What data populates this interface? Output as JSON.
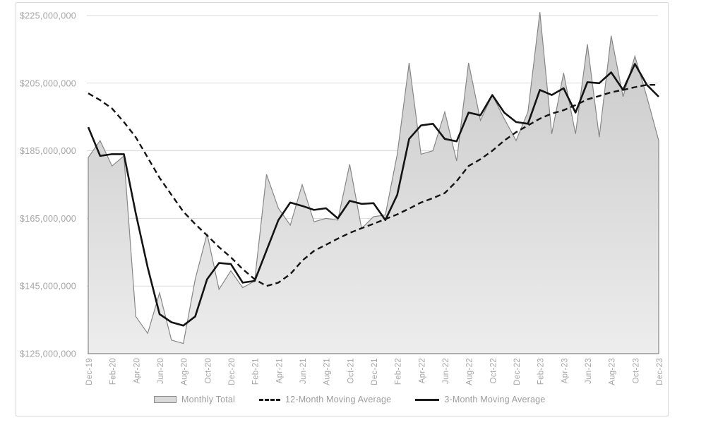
{
  "colors": {
    "area_fill_top": "#c7c7c7",
    "area_fill_bottom": "#ededed",
    "area_stroke": "#878787",
    "line_color": "#141414",
    "gridline": "#dadada",
    "axis_label": "#a6a6a6",
    "legend_text": "#9d9d9d",
    "frame_border": "#d6d6d6"
  },
  "chart_data": {
    "type": "area",
    "title": "",
    "xlabel": "",
    "ylabel": "",
    "grid": true,
    "legend_position": "bottom",
    "ylim": [
      125000000,
      225000000
    ],
    "yticks": [
      "$225,000,000",
      "$205,000,000",
      "$185,000,000",
      "$165,000,000",
      "$145,000,000",
      "$125,000,000"
    ],
    "x_tick_every": 2,
    "x": [
      "Dec-19",
      "Jan-20",
      "Feb-20",
      "Mar-20",
      "Apr-20",
      "May-20",
      "Jun-20",
      "Jul-20",
      "Aug-20",
      "Sep-20",
      "Oct-20",
      "Nov-20",
      "Dec-20",
      "Jan-21",
      "Feb-21",
      "Mar-21",
      "Apr-21",
      "May-21",
      "Jun-21",
      "Jul-21",
      "Aug-21",
      "Sep-21",
      "Oct-21",
      "Nov-21",
      "Dec-21",
      "Jan-22",
      "Feb-22",
      "Mar-22",
      "Apr-22",
      "May-22",
      "Jun-22",
      "Jul-22",
      "Aug-22",
      "Sep-22",
      "Oct-22",
      "Nov-22",
      "Dec-22",
      "Jan-23",
      "Feb-23",
      "Mar-23",
      "Apr-23",
      "May-23",
      "Jun-23",
      "Jul-23",
      "Aug-23",
      "Sep-23",
      "Oct-23",
      "Nov-23",
      "Dec-23"
    ],
    "series": [
      {
        "name": "Monthly Total",
        "type": "area",
        "values": [
          183000000,
          188000000,
          180500000,
          183500000,
          136000000,
          131000000,
          143000000,
          129000000,
          128000000,
          147000000,
          160500000,
          144000000,
          149500000,
          144500000,
          146500000,
          178000000,
          168000000,
          163000000,
          175000000,
          164000000,
          165000000,
          164500000,
          181000000,
          162000000,
          165500000,
          166000000,
          184000000,
          211000000,
          184000000,
          185000000,
          196500000,
          182000000,
          211000000,
          194000000,
          201500000,
          194500000,
          188000000,
          196500000,
          226000000,
          190000000,
          208000000,
          190000000,
          216500000,
          189000000,
          219000000,
          201000000,
          213000000,
          201000000,
          188000000
        ]
      },
      {
        "name": "12-Month Moving Average",
        "type": "dashed-line",
        "values": [
          202000000,
          200000000,
          197500000,
          193500000,
          189000000,
          183000000,
          177000000,
          172000000,
          167000000,
          163300000,
          160000000,
          156500000,
          153500000,
          150000000,
          147000000,
          145000000,
          146000000,
          148500000,
          152500000,
          155400000,
          157200000,
          159000000,
          160700000,
          162100000,
          163400000,
          164800000,
          166200000,
          167900000,
          169700000,
          171000000,
          172500000,
          176000000,
          180500000,
          182500000,
          185000000,
          188000000,
          190500000,
          192500000,
          194500000,
          196000000,
          197000000,
          198500000,
          200200000,
          201200000,
          202300000,
          203000000,
          203800000,
          204500000,
          204500000
        ]
      },
      {
        "name": "3-Month Moving Average",
        "type": "solid-line",
        "values": [
          192000000,
          183500000,
          184000000,
          184000000,
          166500000,
          150500000,
          136700000,
          134300000,
          133300000,
          136000000,
          147000000,
          151800000,
          151500000,
          146000000,
          146500000,
          155500000,
          164500000,
          169700000,
          168700000,
          167500000,
          168000000,
          165000000,
          170200000,
          169300000,
          169500000,
          164500000,
          172000000,
          188500000,
          192500000,
          193000000,
          188500000,
          187800000,
          196300000,
          195500000,
          201500000,
          196300000,
          193500000,
          193000000,
          203000000,
          201500000,
          203500000,
          196300000,
          205300000,
          205000000,
          208200000,
          203000000,
          210700000,
          204500000,
          201000000
        ]
      }
    ]
  },
  "legend": {
    "items": [
      {
        "label": "Monthly Total",
        "swatch": "area-box"
      },
      {
        "label": "12-Month Moving Average",
        "swatch": "dashed-line"
      },
      {
        "label": "3-Month Moving Average",
        "swatch": "solid-line"
      }
    ]
  }
}
